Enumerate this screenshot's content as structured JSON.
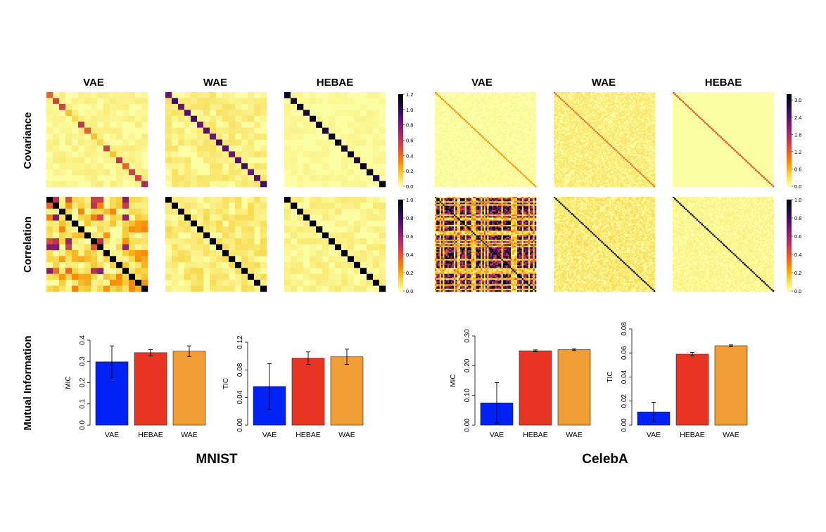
{
  "figure": {
    "column_titles": [
      "VAE",
      "WAE",
      "HEBAE",
      "VAE",
      "WAE",
      "HEBAE"
    ],
    "row_labels": [
      "Covariance",
      "Correlation",
      "Mutual Information"
    ],
    "dataset_labels": [
      "MNIST",
      "CelebA"
    ]
  },
  "colors": {
    "scale": [
      "#fcfea4",
      "#f7d03c",
      "#f98e09",
      "#e45a31",
      "#bc3754",
      "#8a226a",
      "#57106e",
      "#1f0c48",
      "#000004"
    ],
    "bar_VAE": "#0022f5",
    "bar_HEBAE": "#ea3423",
    "bar_WAE": "#f09d36"
  },
  "chart_data": [
    {
      "type": "heatmap",
      "panel": "mnist-covariance",
      "rows": [
        "VAE",
        "WAE",
        "HEBAE"
      ],
      "matrix_size": 16,
      "colorbar_ticks": [
        "1.2",
        "1.0",
        "0.8",
        "0.6",
        "0.4",
        "0.2",
        "0.0"
      ],
      "colorbar_range": [
        0,
        1.2
      ],
      "diagonal_VAE": [
        0.35,
        0.45,
        0.45,
        0.15,
        0.1,
        0.5,
        0.35,
        0.15,
        0.1,
        0.45,
        0.15,
        0.5,
        0.35,
        0.45,
        0.45,
        0.55
      ],
      "diagonal_WAE": [
        0.7,
        0.8,
        0.7,
        0.75,
        0.8,
        0.7,
        0.75,
        0.7,
        0.8,
        0.75,
        0.7,
        0.75,
        0.8,
        0.7,
        0.75,
        0.8
      ],
      "diagonal_HEBAE": [
        0.95,
        0.9,
        0.95,
        0.9,
        0.95,
        0.95,
        0.9,
        0.95,
        0.95,
        0.9,
        0.95,
        0.9,
        0.95,
        0.95,
        0.9,
        0.95
      ],
      "offdiag_level": {
        "VAE": 0.05,
        "WAE": 0.08,
        "HEBAE": 0.03
      }
    },
    {
      "type": "heatmap",
      "panel": "mnist-correlation",
      "rows": [
        "VAE",
        "WAE",
        "HEBAE"
      ],
      "matrix_size": 16,
      "colorbar_ticks": [
        "1.0",
        "0.8",
        "0.6",
        "0.4",
        "0.2",
        "0.0"
      ],
      "colorbar_range": [
        0,
        1.0
      ],
      "diagonal": 1.0,
      "offdiag_level": {
        "VAE": 0.28,
        "WAE": 0.1,
        "HEBAE": 0.06
      }
    },
    {
      "type": "heatmap",
      "panel": "celeba-covariance",
      "rows": [
        "VAE",
        "WAE",
        "HEBAE"
      ],
      "matrix_size": 64,
      "colorbar_ticks": [
        "3.0",
        "2.4",
        "1.8",
        "1.2",
        "0.6",
        "0.0"
      ],
      "colorbar_range": [
        0,
        3.2
      ],
      "diagonal_level": {
        "VAE": 0.75,
        "WAE": 1.1,
        "HEBAE": 1.2
      },
      "offdiag_level": {
        "VAE": 0.02,
        "WAE": 0.08,
        "HEBAE": 0.01
      }
    },
    {
      "type": "heatmap",
      "panel": "celeba-correlation",
      "rows": [
        "VAE",
        "WAE",
        "HEBAE"
      ],
      "matrix_size": 64,
      "colorbar_ticks": [
        "1.0",
        "0.8",
        "0.6",
        "0.4",
        "0.2",
        "0.0"
      ],
      "colorbar_range": [
        0,
        1.0
      ],
      "diagonal": 1.0,
      "offdiag_level": {
        "VAE": 0.45,
        "WAE": 0.1,
        "HEBAE": 0.04
      }
    },
    {
      "type": "bar",
      "panel": "mnist-mic",
      "ylabel": "MIC",
      "ylim": [
        0,
        0.4
      ],
      "yticks": [
        "0.0",
        "0.1",
        "0.2",
        "0.3",
        "0.4"
      ],
      "categories": [
        "VAE",
        "HEBAE",
        "WAE"
      ],
      "values": [
        0.298,
        0.341,
        0.348
      ],
      "errors": [
        0.075,
        0.015,
        0.025
      ]
    },
    {
      "type": "bar",
      "panel": "mnist-tic",
      "ylabel": "TIC",
      "ylim": [
        0,
        0.12
      ],
      "yticks": [
        "0.00",
        "0.04",
        "0.08",
        "0.12"
      ],
      "categories": [
        "VAE",
        "HEBAE",
        "WAE"
      ],
      "values": [
        0.056,
        0.097,
        0.099
      ],
      "errors": [
        0.033,
        0.009,
        0.011
      ]
    },
    {
      "type": "bar",
      "panel": "celeba-mic",
      "ylabel": "MIC",
      "ylim": [
        0,
        0.3
      ],
      "yticks": [
        "0.00",
        "0.10",
        "0.20",
        "0.30"
      ],
      "categories": [
        "VAE",
        "HEBAE",
        "WAE"
      ],
      "values": [
        0.075,
        0.25,
        0.254
      ],
      "errors": [
        0.068,
        0.003,
        0.003
      ]
    },
    {
      "type": "bar",
      "panel": "celeba-tic",
      "ylabel": "TIC",
      "ylim": [
        0,
        0.08
      ],
      "yticks": [
        "0.00",
        "0.02",
        "0.04",
        "0.06",
        "0.08"
      ],
      "categories": [
        "VAE",
        "HEBAE",
        "WAE"
      ],
      "values": [
        0.011,
        0.059,
        0.066
      ],
      "errors": [
        0.008,
        0.0015,
        0.0007
      ]
    }
  ]
}
